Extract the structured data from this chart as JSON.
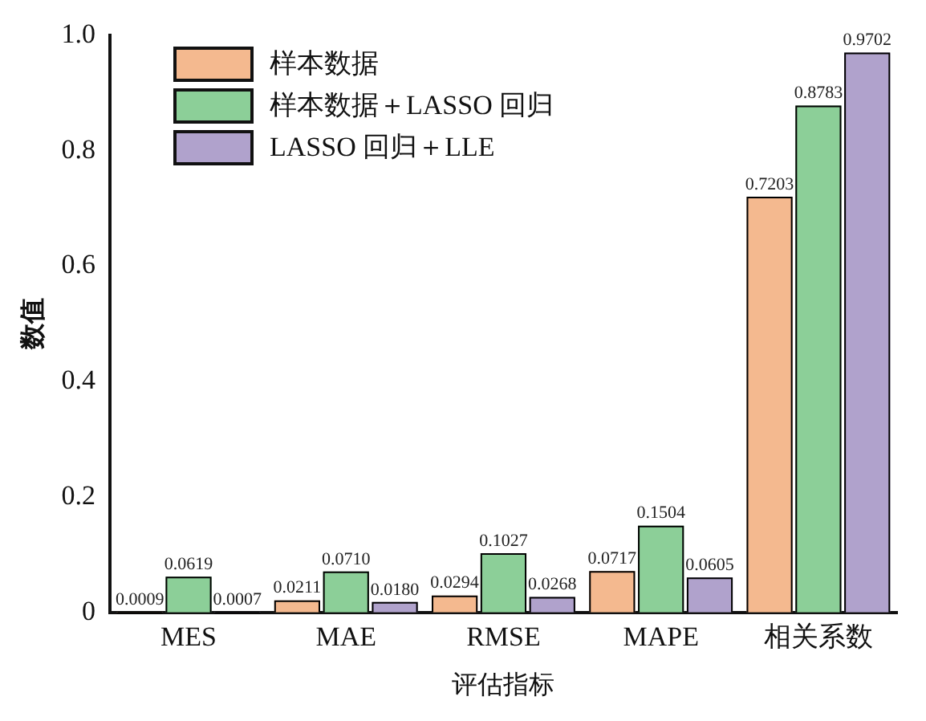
{
  "chart_data": {
    "type": "bar",
    "xlabel": "评估指标",
    "ylabel": "数值",
    "categories": [
      "MES",
      "MAE",
      "RMSE",
      "MAPE",
      "相关系数"
    ],
    "series": [
      {
        "name": "样本数据",
        "color": "#f4b98f",
        "values": [
          0.0009,
          0.0211,
          0.0294,
          0.0717,
          0.7203
        ],
        "value_labels": [
          "0.0009",
          "0.0211",
          "0.0294",
          "0.0717",
          "0.7203"
        ]
      },
      {
        "name": "样本数据＋LASSO 回归",
        "color": "#8ccf98",
        "values": [
          0.0619,
          0.071,
          0.1027,
          0.1504,
          0.8783
        ],
        "value_labels": [
          "0.0619",
          "0.0710",
          "0.1027",
          "0.1504",
          "0.8783"
        ]
      },
      {
        "name": "LASSO 回归＋LLE",
        "color": "#b0a2cc",
        "values": [
          0.0007,
          0.018,
          0.0268,
          0.0605,
          0.9702
        ],
        "value_labels": [
          "0.0007",
          "0.0180",
          "0.0268",
          "0.0605",
          "0.9702"
        ]
      }
    ],
    "ylim": [
      0,
      1
    ],
    "yticks": [
      0,
      0.2,
      0.4,
      0.6,
      0.8,
      {
        "value": 1,
        "label": "1.0"
      }
    ],
    "grid": false,
    "legend": "top left"
  }
}
